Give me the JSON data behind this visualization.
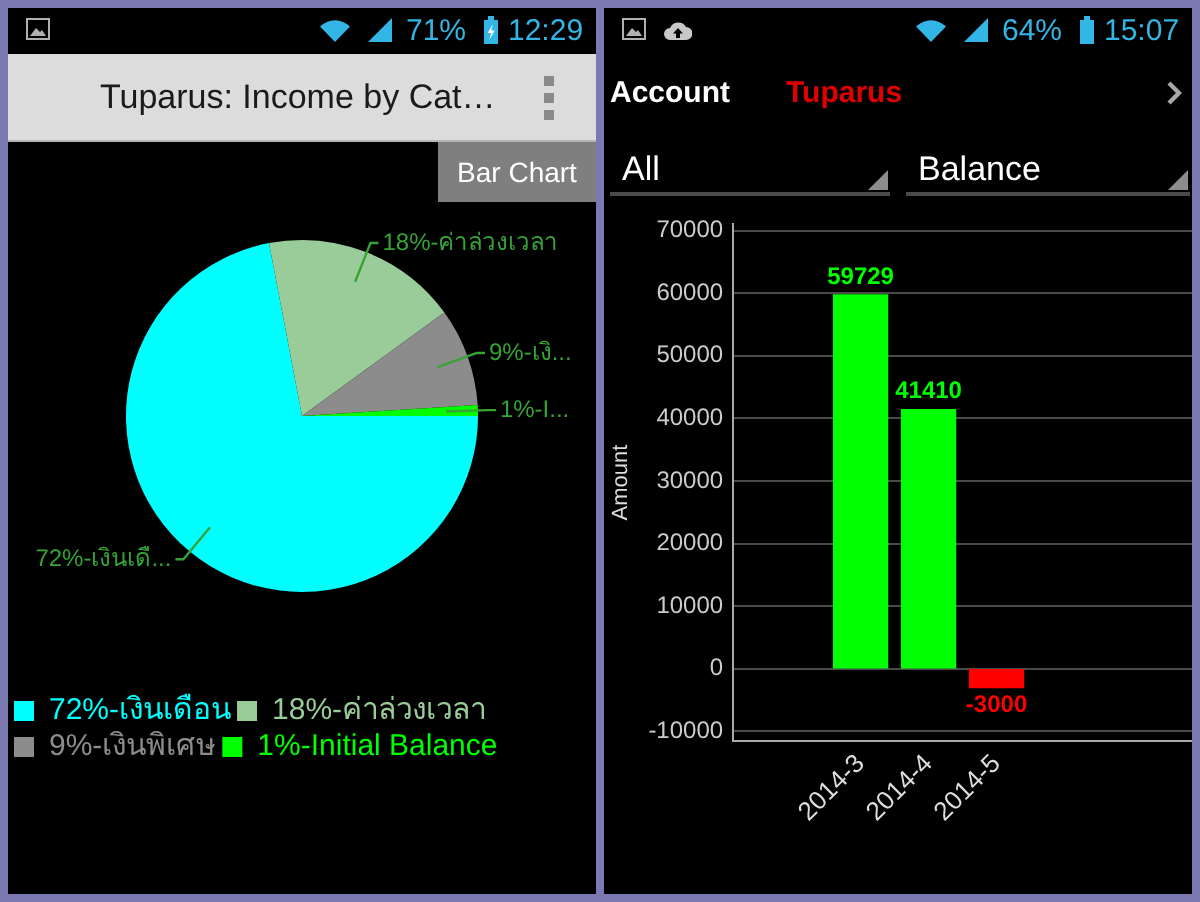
{
  "chart_data": [
    {
      "type": "pie",
      "title": "Tuparus: Income by Cat…",
      "categories": [
        "72%-เงินเดือน",
        "18%-ค่าล่วงเวลา",
        "9%-เงินพิเศษ",
        "1%-Initial Balance"
      ],
      "values": [
        72,
        18,
        9,
        1
      ],
      "colors": [
        "#00ffff",
        "#99cc99",
        "#8c8c8c",
        "#00ff00"
      ],
      "value_labels": [
        "72%-เงินเดื...",
        "18%-ค่าล่วงเวลา",
        "9%-เงิ...",
        "1%-I..."
      ],
      "legend": "bottom left",
      "annotations": [
        "71%",
        "12:29",
        "Bar Chart"
      ]
    },
    {
      "type": "bar",
      "ylabel": "Amount",
      "categories": [
        "2014-3",
        "2014-4",
        "2014-5"
      ],
      "values": [
        59729,
        41410,
        -3000
      ],
      "colors": [
        "#00ff00",
        "#00ff00",
        "#ff0000"
      ],
      "ylim": [
        -11500,
        71000
      ],
      "yticks": [
        -10000,
        0,
        10000,
        20000,
        30000,
        40000,
        50000,
        60000,
        70000
      ],
      "grid": "y",
      "data_labels": true,
      "annotations": [
        "64%",
        "15:07",
        "Account",
        "Tuparus",
        "All",
        "Balance"
      ]
    }
  ]
}
